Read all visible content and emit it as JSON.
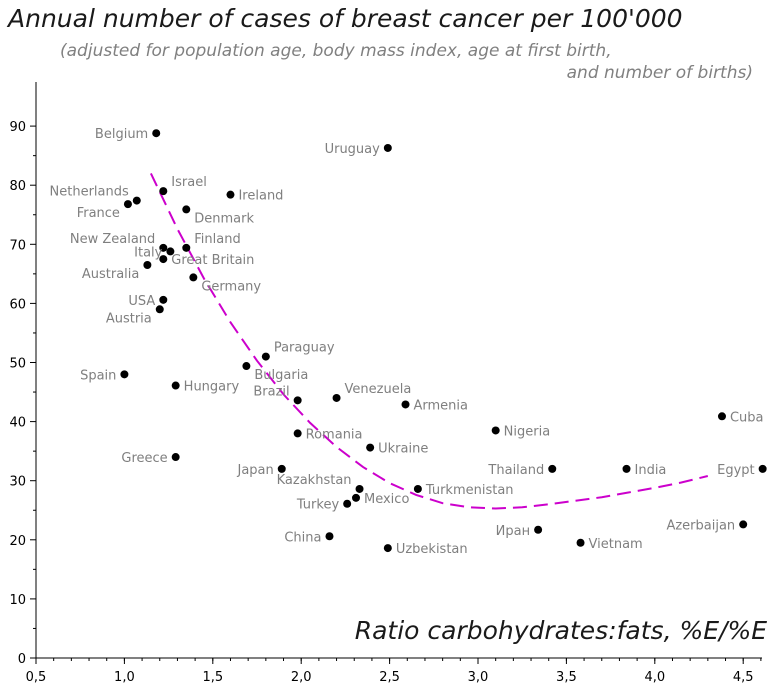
{
  "chart_data": {
    "type": "scatter",
    "title": "Annual number of cases of breast cancer per 100'000",
    "subtitle_line1": "(adjusted for population age, body mass index, age at first birth,",
    "subtitle_line2": "and number of births)",
    "xlabel": "Ratio carbohydrates:fats, %E/%E",
    "ylabel": "",
    "xlim": [
      0.5,
      4.6
    ],
    "ylim": [
      0,
      97
    ],
    "x_ticks": [
      "0,5",
      "1,0",
      "1,5",
      "2,0",
      "2,5",
      "3,0",
      "3,5",
      "4,0",
      "4,5"
    ],
    "x_tick_values": [
      0.5,
      1.0,
      1.5,
      2.0,
      2.5,
      3.0,
      3.5,
      4.0,
      4.5
    ],
    "y_ticks": [
      0,
      10,
      20,
      30,
      40,
      50,
      60,
      70,
      80,
      90
    ],
    "grid": false,
    "colors": {
      "points": "#000000",
      "labels": "#7f7f7f",
      "trend": "#cc00cc",
      "axis": "#000000"
    },
    "points": [
      {
        "label": "Belgium",
        "x": 1.18,
        "y": 88.8,
        "anchor": "end"
      },
      {
        "label": "Uruguay",
        "x": 2.49,
        "y": 86.3,
        "anchor": "end"
      },
      {
        "label": "Israel",
        "x": 1.22,
        "y": 79.0,
        "anchor": "start-up"
      },
      {
        "label": "Ireland",
        "x": 1.6,
        "y": 78.4,
        "anchor": "start"
      },
      {
        "label": "Netherlands",
        "x": 1.07,
        "y": 77.4,
        "anchor": "end-up"
      },
      {
        "label": "France",
        "x": 1.02,
        "y": 76.8,
        "anchor": "end-down"
      },
      {
        "label": "Denmark",
        "x": 1.35,
        "y": 75.9,
        "anchor": "start-down"
      },
      {
        "label": "New Zealand",
        "x": 1.22,
        "y": 69.4,
        "anchor": "end-up"
      },
      {
        "label": "Finland",
        "x": 1.35,
        "y": 69.4,
        "anchor": "start-up"
      },
      {
        "label": "Italy",
        "x": 1.26,
        "y": 68.8,
        "anchor": "end"
      },
      {
        "label": "Great Britain",
        "x": 1.22,
        "y": 67.5,
        "anchor": "start"
      },
      {
        "label": "Australia",
        "x": 1.13,
        "y": 66.5,
        "anchor": "end-down"
      },
      {
        "label": "Germany",
        "x": 1.39,
        "y": 64.4,
        "anchor": "start-down"
      },
      {
        "label": "USA",
        "x": 1.22,
        "y": 60.6,
        "anchor": "end"
      },
      {
        "label": "Austria",
        "x": 1.2,
        "y": 59.0,
        "anchor": "end-down"
      },
      {
        "label": "Paraguay",
        "x": 1.8,
        "y": 51.0,
        "anchor": "start-up"
      },
      {
        "label": "Bulgaria",
        "x": 1.69,
        "y": 49.4,
        "anchor": "start-down"
      },
      {
        "label": "Spain",
        "x": 1.0,
        "y": 48.0,
        "anchor": "end"
      },
      {
        "label": "Hungary",
        "x": 1.29,
        "y": 46.1,
        "anchor": "start"
      },
      {
        "label": "Venezuela",
        "x": 2.2,
        "y": 44.0,
        "anchor": "start-up"
      },
      {
        "label": "Brazil",
        "x": 1.98,
        "y": 43.6,
        "anchor": "end-up"
      },
      {
        "label": "Armenia",
        "x": 2.59,
        "y": 42.9,
        "anchor": "start"
      },
      {
        "label": "Cuba",
        "x": 4.38,
        "y": 40.9,
        "anchor": "start"
      },
      {
        "label": "Nigeria",
        "x": 3.1,
        "y": 38.5,
        "anchor": "start"
      },
      {
        "label": "Romania",
        "x": 1.98,
        "y": 38.0,
        "anchor": "start"
      },
      {
        "label": "Ukraine",
        "x": 2.39,
        "y": 35.6,
        "anchor": "start"
      },
      {
        "label": "Greece",
        "x": 1.29,
        "y": 34.0,
        "anchor": "end"
      },
      {
        "label": "Japan",
        "x": 1.89,
        "y": 32.0,
        "anchor": "end"
      },
      {
        "label": "Thailand",
        "x": 3.42,
        "y": 32.0,
        "anchor": "end"
      },
      {
        "label": "India",
        "x": 3.84,
        "y": 32.0,
        "anchor": "start"
      },
      {
        "label": "Egypt",
        "x": 4.61,
        "y": 32.0,
        "anchor": "end"
      },
      {
        "label": "Kazakhstan",
        "x": 2.33,
        "y": 28.6,
        "anchor": "end-up"
      },
      {
        "label": "Turkmenistan",
        "x": 2.66,
        "y": 28.6,
        "anchor": "start"
      },
      {
        "label": "Mexico",
        "x": 2.31,
        "y": 27.1,
        "anchor": "start"
      },
      {
        "label": "Turkey",
        "x": 2.26,
        "y": 26.1,
        "anchor": "end"
      },
      {
        "label": "Azerbaijan",
        "x": 4.5,
        "y": 22.6,
        "anchor": "end"
      },
      {
        "label": "Иран",
        "x": 3.34,
        "y": 21.7,
        "anchor": "end"
      },
      {
        "label": "China",
        "x": 2.16,
        "y": 20.6,
        "anchor": "end"
      },
      {
        "label": "Vietnam",
        "x": 3.58,
        "y": 19.5,
        "anchor": "start"
      },
      {
        "label": "Uzbekistan",
        "x": 2.49,
        "y": 18.6,
        "anchor": "start"
      }
    ],
    "trendline": {
      "type": "polynomial fit (dashed)",
      "x_range": [
        1.15,
        4.3
      ],
      "points": [
        [
          1.15,
          82.0
        ],
        [
          1.3,
          72.6
        ],
        [
          1.45,
          64.2
        ],
        [
          1.6,
          56.8
        ],
        [
          1.75,
          50.3
        ],
        [
          1.9,
          44.6
        ],
        [
          2.05,
          39.8
        ],
        [
          2.2,
          35.7
        ],
        [
          2.35,
          32.3
        ],
        [
          2.5,
          29.6
        ],
        [
          2.65,
          27.6
        ],
        [
          2.8,
          26.2
        ],
        [
          2.95,
          25.5
        ],
        [
          3.1,
          25.3
        ],
        [
          3.25,
          25.5
        ],
        [
          3.4,
          26.0
        ],
        [
          3.55,
          26.6
        ],
        [
          3.7,
          27.2
        ],
        [
          3.85,
          28.0
        ],
        [
          4.0,
          28.8
        ],
        [
          4.15,
          29.7
        ],
        [
          4.3,
          30.8
        ]
      ]
    }
  }
}
